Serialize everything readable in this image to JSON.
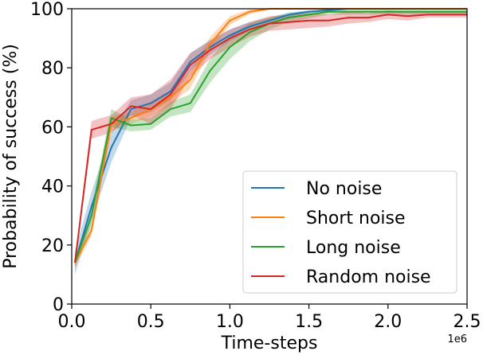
{
  "chart_data": {
    "type": "line",
    "title": "",
    "xlabel": "Time-steps",
    "ylabel": "Probability of success (%)",
    "x_offset_label": "1e6",
    "xlim": [
      0,
      2.5
    ],
    "ylim": [
      0,
      100
    ],
    "xticks": [
      0.0,
      0.5,
      1.0,
      1.5,
      2.0,
      2.5
    ],
    "xtick_labels": [
      "0.0",
      "0.5",
      "1.0",
      "1.5",
      "2.0",
      "2.5"
    ],
    "yticks": [
      0,
      20,
      40,
      60,
      80,
      100
    ],
    "ytick_labels": [
      "0",
      "20",
      "40",
      "60",
      "80",
      "100"
    ],
    "grid": false,
    "legend_position": "lower-right",
    "series": [
      {
        "name": "No noise",
        "color": "#1f77b4",
        "x": [
          0.02,
          0.125,
          0.25,
          0.375,
          0.5,
          0.625,
          0.75,
          0.875,
          1.0,
          1.125,
          1.25,
          1.375,
          1.5,
          1.625,
          1.75,
          1.875,
          2.0,
          2.125,
          2.25,
          2.375,
          2.5
        ],
        "y": [
          14,
          33,
          53,
          66,
          68,
          72,
          82,
          87,
          91,
          94,
          96,
          98,
          99,
          99.5,
          100,
          100,
          100,
          100,
          100,
          100,
          100
        ],
        "band": [
          4,
          5,
          5,
          3,
          3,
          3,
          3,
          2.5,
          2,
          1.5,
          1,
          0.8,
          0.5,
          0.3,
          0.2,
          0.2,
          0.2,
          0.2,
          0.2,
          0.2,
          0.2
        ]
      },
      {
        "name": "Short noise",
        "color": "#ff7f0e",
        "x": [
          0.02,
          0.125,
          0.25,
          0.375,
          0.5,
          0.625,
          0.75,
          0.875,
          1.0,
          1.125,
          1.25,
          1.375,
          1.5,
          1.625,
          1.75,
          1.875,
          2.0,
          2.125,
          2.25,
          2.375,
          2.5
        ],
        "y": [
          14,
          25,
          61,
          63,
          66,
          70,
          76,
          88,
          96,
          99,
          100,
          100,
          100,
          100,
          100,
          100,
          100,
          100,
          100,
          100,
          100
        ],
        "band": [
          1.5,
          2,
          2.5,
          2,
          2.5,
          2.5,
          3,
          2.5,
          1.5,
          0.8,
          0.3,
          0.2,
          0.2,
          0.2,
          0.2,
          0.2,
          0.2,
          0.2,
          0.2,
          0.2,
          0.2
        ]
      },
      {
        "name": "Long noise",
        "color": "#2ca02c",
        "x": [
          0.02,
          0.125,
          0.25,
          0.375,
          0.5,
          0.625,
          0.75,
          0.875,
          1.0,
          1.125,
          1.25,
          1.375,
          1.5,
          1.625,
          1.75,
          1.875,
          2.0,
          2.125,
          2.25,
          2.375,
          2.5
        ],
        "y": [
          14,
          30,
          63,
          60.5,
          61,
          66,
          68,
          79,
          87,
          92,
          95,
          97,
          98,
          99,
          99,
          99,
          99,
          99,
          99,
          99,
          99
        ],
        "band": [
          1.5,
          3,
          3,
          2,
          2,
          2.5,
          3,
          4,
          4,
          3,
          2,
          1.5,
          1.2,
          1,
          1,
          1,
          1,
          1,
          1,
          1,
          1
        ]
      },
      {
        "name": "Random noise",
        "color": "#d62728",
        "x": [
          0.02,
          0.125,
          0.25,
          0.375,
          0.5,
          0.625,
          0.75,
          0.875,
          1.0,
          1.125,
          1.25,
          1.375,
          1.5,
          1.625,
          1.75,
          1.875,
          2.0,
          2.125,
          2.25,
          2.375,
          2.5
        ],
        "y": [
          14,
          59,
          61,
          67,
          66,
          71,
          81,
          86,
          90,
          93,
          95,
          95.5,
          96,
          96,
          97,
          97,
          98,
          97.5,
          98,
          98,
          98
        ],
        "band": [
          1.5,
          3,
          3,
          3,
          5,
          5,
          4,
          3,
          3,
          2.5,
          2.5,
          2.5,
          2.5,
          2,
          2,
          1.5,
          1.5,
          1.5,
          1,
          1,
          1
        ]
      }
    ]
  }
}
